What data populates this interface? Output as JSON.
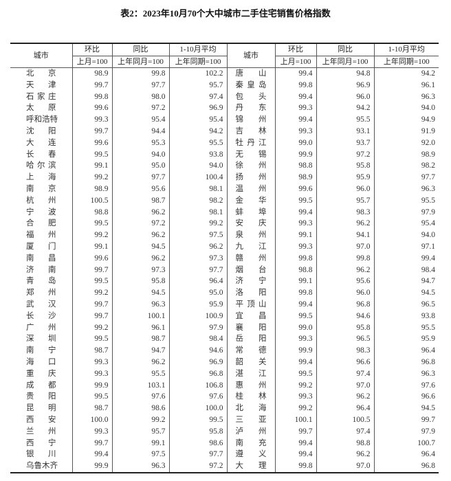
{
  "title": "表2：2023年10月70个大中城市二手住宅销售价格指数",
  "headers": {
    "city": "城市",
    "mom": "环比",
    "yoy": "同比",
    "avg": "1-10月平均",
    "mom_base": "上月=100",
    "yoy_base": "上年同月=100",
    "avg_base": "上年同期=100"
  },
  "left_rows": [
    {
      "city": "北京",
      "mom": "98.9",
      "yoy": "99.8",
      "avg": "102.2"
    },
    {
      "city": "天津",
      "mom": "99.7",
      "yoy": "97.7",
      "avg": "95.7"
    },
    {
      "city": "石家庄",
      "mom": "99.8",
      "yoy": "98.0",
      "avg": "97.4"
    },
    {
      "city": "太原",
      "mom": "99.6",
      "yoy": "97.2",
      "avg": "96.9"
    },
    {
      "city": "呼和浩特",
      "mom": "99.3",
      "yoy": "95.4",
      "avg": "95.4"
    },
    {
      "city": "沈阳",
      "mom": "99.7",
      "yoy": "94.4",
      "avg": "94.2"
    },
    {
      "city": "大连",
      "mom": "99.6",
      "yoy": "95.3",
      "avg": "95.5"
    },
    {
      "city": "长春",
      "mom": "99.5",
      "yoy": "94.0",
      "avg": "93.8"
    },
    {
      "city": "哈尔滨",
      "mom": "99.1",
      "yoy": "95.0",
      "avg": "94.0"
    },
    {
      "city": "上海",
      "mom": "99.2",
      "yoy": "97.7",
      "avg": "100.4"
    },
    {
      "city": "南京",
      "mom": "98.9",
      "yoy": "95.6",
      "avg": "98.1"
    },
    {
      "city": "杭州",
      "mom": "100.5",
      "yoy": "98.7",
      "avg": "98.2"
    },
    {
      "city": "宁波",
      "mom": "98.8",
      "yoy": "96.2",
      "avg": "98.1"
    },
    {
      "city": "合肥",
      "mom": "99.5",
      "yoy": "97.2",
      "avg": "99.2"
    },
    {
      "city": "福州",
      "mom": "99.2",
      "yoy": "96.2",
      "avg": "97.5"
    },
    {
      "city": "厦门",
      "mom": "99.1",
      "yoy": "94.5",
      "avg": "96.2"
    },
    {
      "city": "南昌",
      "mom": "99.6",
      "yoy": "96.2",
      "avg": "97.3"
    },
    {
      "city": "济南",
      "mom": "99.7",
      "yoy": "97.3",
      "avg": "97.7"
    },
    {
      "city": "青岛",
      "mom": "99.5",
      "yoy": "95.8",
      "avg": "96.4"
    },
    {
      "city": "郑州",
      "mom": "99.2",
      "yoy": "94.5",
      "avg": "95.0"
    },
    {
      "city": "武汉",
      "mom": "99.7",
      "yoy": "96.3",
      "avg": "95.9"
    },
    {
      "city": "长沙",
      "mom": "99.7",
      "yoy": "100.1",
      "avg": "100.9"
    },
    {
      "city": "广州",
      "mom": "99.2",
      "yoy": "96.1",
      "avg": "97.9"
    },
    {
      "city": "深圳",
      "mom": "99.5",
      "yoy": "98.7",
      "avg": "98.4"
    },
    {
      "city": "南宁",
      "mom": "98.7",
      "yoy": "94.7",
      "avg": "94.6"
    },
    {
      "city": "海口",
      "mom": "99.3",
      "yoy": "96.2",
      "avg": "96.9"
    },
    {
      "city": "重庆",
      "mom": "99.3",
      "yoy": "95.5",
      "avg": "96.8"
    },
    {
      "city": "成都",
      "mom": "99.9",
      "yoy": "103.1",
      "avg": "106.8"
    },
    {
      "city": "贵阳",
      "mom": "99.5",
      "yoy": "97.6",
      "avg": "97.6"
    },
    {
      "city": "昆明",
      "mom": "98.7",
      "yoy": "98.6",
      "avg": "100.0"
    },
    {
      "city": "西安",
      "mom": "100.0",
      "yoy": "99.2",
      "avg": "99.5"
    },
    {
      "city": "兰州",
      "mom": "99.3",
      "yoy": "95.7",
      "avg": "95.8"
    },
    {
      "city": "西宁",
      "mom": "99.7",
      "yoy": "99.1",
      "avg": "98.6"
    },
    {
      "city": "银川",
      "mom": "99.4",
      "yoy": "97.5",
      "avg": "97.7"
    },
    {
      "city": "乌鲁木齐",
      "mom": "99.9",
      "yoy": "96.3",
      "avg": "97.2"
    }
  ],
  "right_rows": [
    {
      "city": "唐山",
      "mom": "99.4",
      "yoy": "94.8",
      "avg": "94.2"
    },
    {
      "city": "秦皇岛",
      "mom": "99.8",
      "yoy": "96.9",
      "avg": "96.1"
    },
    {
      "city": "包头",
      "mom": "99.4",
      "yoy": "96.0",
      "avg": "96.3"
    },
    {
      "city": "丹东",
      "mom": "99.3",
      "yoy": "94.2",
      "avg": "94.0"
    },
    {
      "city": "锦州",
      "mom": "99.4",
      "yoy": "95.5",
      "avg": "94.9"
    },
    {
      "city": "吉林",
      "mom": "99.3",
      "yoy": "93.1",
      "avg": "91.9"
    },
    {
      "city": "牡丹江",
      "mom": "99.0",
      "yoy": "93.7",
      "avg": "92.0"
    },
    {
      "city": "无锡",
      "mom": "99.9",
      "yoy": "97.2",
      "avg": "98.9"
    },
    {
      "city": "徐州",
      "mom": "98.8",
      "yoy": "95.8",
      "avg": "98.2"
    },
    {
      "city": "扬州",
      "mom": "98.9",
      "yoy": "95.9",
      "avg": "97.7"
    },
    {
      "city": "温州",
      "mom": "99.6",
      "yoy": "96.0",
      "avg": "96.3"
    },
    {
      "city": "金华",
      "mom": "99.5",
      "yoy": "95.7",
      "avg": "95.5"
    },
    {
      "city": "蚌埠",
      "mom": "99.4",
      "yoy": "98.3",
      "avg": "97.9"
    },
    {
      "city": "安庆",
      "mom": "99.3",
      "yoy": "96.2",
      "avg": "95.4"
    },
    {
      "city": "泉州",
      "mom": "99.1",
      "yoy": "94.1",
      "avg": "94.0"
    },
    {
      "city": "九江",
      "mom": "99.3",
      "yoy": "97.0",
      "avg": "97.1"
    },
    {
      "city": "赣州",
      "mom": "99.8",
      "yoy": "99.8",
      "avg": "99.4"
    },
    {
      "city": "烟台",
      "mom": "98.8",
      "yoy": "96.2",
      "avg": "98.4"
    },
    {
      "city": "济宁",
      "mom": "99.1",
      "yoy": "95.6",
      "avg": "94.7"
    },
    {
      "city": "洛阳",
      "mom": "99.8",
      "yoy": "96.0",
      "avg": "94.5"
    },
    {
      "city": "平顶山",
      "mom": "99.4",
      "yoy": "96.8",
      "avg": "96.5"
    },
    {
      "city": "宜昌",
      "mom": "99.5",
      "yoy": "94.6",
      "avg": "93.8"
    },
    {
      "city": "襄阳",
      "mom": "99.0",
      "yoy": "95.8",
      "avg": "95.5"
    },
    {
      "city": "岳阳",
      "mom": "99.3",
      "yoy": "96.5",
      "avg": "95.9"
    },
    {
      "city": "常德",
      "mom": "99.9",
      "yoy": "98.3",
      "avg": "96.4"
    },
    {
      "city": "韶关",
      "mom": "99.4",
      "yoy": "96.6",
      "avg": "96.8"
    },
    {
      "city": "湛江",
      "mom": "99.5",
      "yoy": "97.4",
      "avg": "96.3"
    },
    {
      "city": "惠州",
      "mom": "99.2",
      "yoy": "97.0",
      "avg": "97.6"
    },
    {
      "city": "桂林",
      "mom": "99.3",
      "yoy": "96.2",
      "avg": "96.6"
    },
    {
      "city": "北海",
      "mom": "99.2",
      "yoy": "96.4",
      "avg": "94.5"
    },
    {
      "city": "三亚",
      "mom": "100.1",
      "yoy": "100.5",
      "avg": "99.7"
    },
    {
      "city": "泸州",
      "mom": "99.7",
      "yoy": "97.4",
      "avg": "97.9"
    },
    {
      "city": "南充",
      "mom": "99.4",
      "yoy": "98.8",
      "avg": "100.7"
    },
    {
      "city": "遵义",
      "mom": "99.4",
      "yoy": "96.2",
      "avg": "96.4"
    },
    {
      "city": "大理",
      "mom": "99.8",
      "yoy": "97.0",
      "avg": "96.8"
    }
  ]
}
